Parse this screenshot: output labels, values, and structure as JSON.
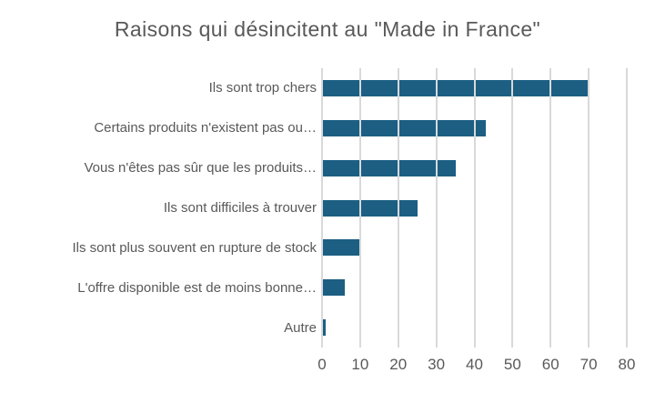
{
  "title": "Raisons qui désincitent au \"Made in France\"",
  "chart_data": {
    "type": "bar",
    "orientation": "horizontal",
    "title": "Raisons qui désincitent au \"Made in France\"",
    "categories": [
      "Ils sont trop chers",
      "Certains produits n'existent pas ou…",
      "Vous n'êtes pas sûr que les produits…",
      "Ils sont difficiles à trouver",
      "Ils sont plus souvent en rupture de stock",
      "L'offre disponible est de moins bonne…",
      "Autre"
    ],
    "values": [
      70,
      43,
      35,
      25,
      10,
      6,
      1
    ],
    "xlabel": "",
    "ylabel": "",
    "xlim": [
      0,
      80
    ],
    "x_ticks": [
      "0",
      "10",
      "20",
      "30",
      "40",
      "50",
      "60",
      "70",
      "80"
    ],
    "grid": "vertical",
    "legend": null,
    "colors": {
      "bar": "#1c5f83",
      "gridline": "#d9d9d9",
      "title_text": "#595959",
      "label_text": "#595959",
      "tick_text": "#595959",
      "background": "#ffffff"
    }
  }
}
